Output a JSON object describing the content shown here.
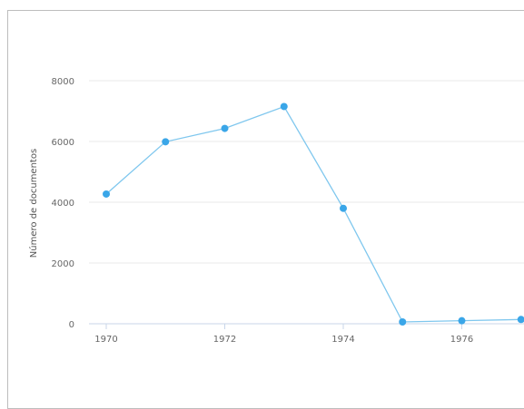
{
  "chart_data": {
    "type": "line",
    "title": "",
    "xlabel": "",
    "ylabel": "Número de documentos",
    "xlim": [
      1969.7,
      1977
    ],
    "ylim": [
      0,
      8000
    ],
    "x_ticks": [
      1970,
      1972,
      1974,
      1976
    ],
    "y_ticks": [
      0,
      2000,
      4000,
      6000,
      8000
    ],
    "grid": true,
    "legend": "none",
    "colors": {
      "line": "#7fc7ee",
      "marker": "#3aa6e8",
      "grid": "#e8e8e8",
      "axis": "#c8d6ea"
    },
    "series": [
      {
        "x": [
          1970,
          1971,
          1972,
          1973,
          1974,
          1975,
          1976,
          1977
        ],
        "y": [
          4270,
          5990,
          6430,
          7150,
          3800,
          60,
          100,
          140
        ]
      }
    ]
  }
}
